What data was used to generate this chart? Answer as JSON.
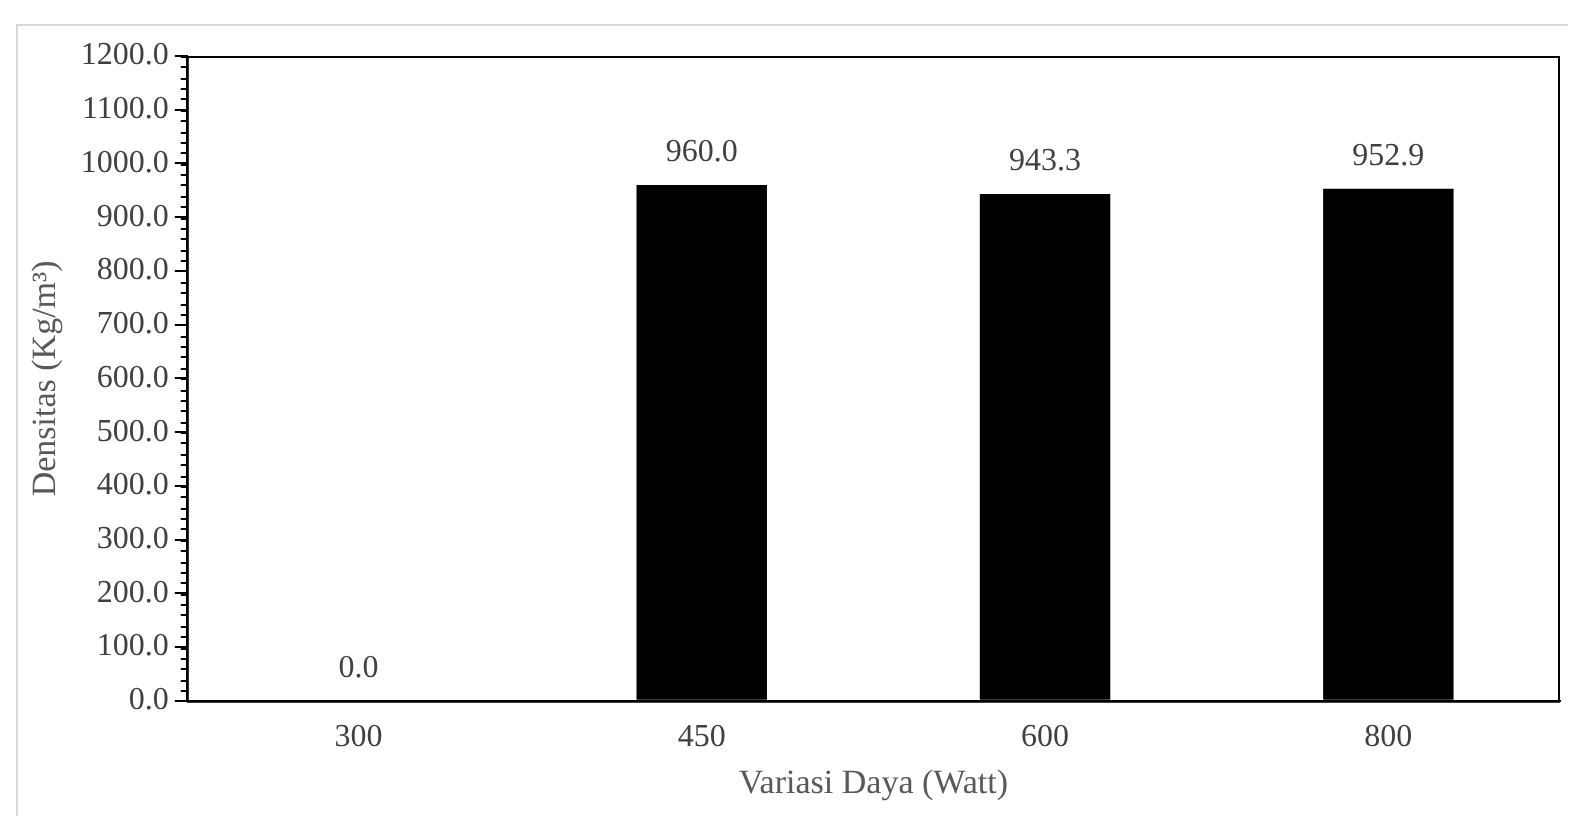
{
  "chart_data": {
    "type": "bar",
    "xlabel": "Variasi Daya (Watt)",
    "ylabel": "Densitas (Kg/m³)",
    "categories": [
      "300",
      "450",
      "600",
      "800"
    ],
    "values": [
      0.0,
      960.0,
      943.3,
      952.9
    ],
    "value_labels": [
      "0.0",
      "960.0",
      "943.3",
      "952.9"
    ],
    "color": "#000000",
    "ylim": [
      0,
      1200
    ],
    "yticks": [
      {
        "value": 0,
        "label": "0.0"
      },
      {
        "value": 100,
        "label": "100.0"
      },
      {
        "value": 200,
        "label": "200.0"
      },
      {
        "value": 300,
        "label": "300.0"
      },
      {
        "value": 400,
        "label": "400.0"
      },
      {
        "value": 500,
        "label": "500.0"
      },
      {
        "value": 600,
        "label": "600.0"
      },
      {
        "value": 700,
        "label": "700.0"
      },
      {
        "value": 800,
        "label": "800.0"
      },
      {
        "value": 900,
        "label": "900.0"
      },
      {
        "value": 1000,
        "label": "1000.0"
      },
      {
        "value": 1100,
        "label": "1100.0"
      },
      {
        "value": 1200,
        "label": "1200.0"
      }
    ],
    "grid": false,
    "legend": false
  }
}
